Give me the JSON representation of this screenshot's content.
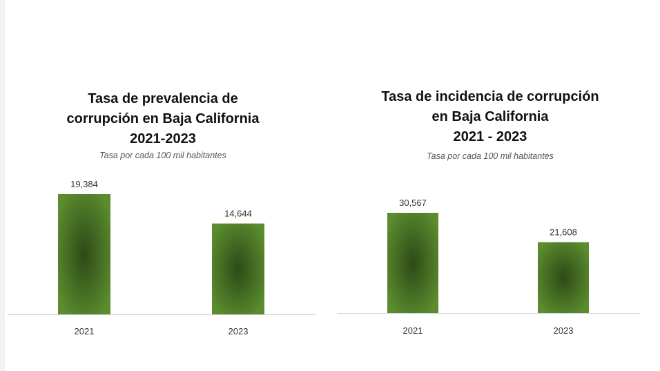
{
  "colors": {
    "bar_center": "#2c4a17",
    "bar_edge": "#5b8c2e",
    "axis": "#cfcfcf"
  },
  "chart_data": [
    {
      "type": "bar",
      "title": "Tasa de prevalencia de\ncorrupción en Baja California\n2021-2023",
      "subtitle": "Tasa por cada 100 mil habitantes",
      "categories": [
        "2021",
        "2023"
      ],
      "values": [
        19384,
        14644
      ],
      "value_labels": [
        "19,384",
        "14,644"
      ],
      "ylim": [
        0,
        19384
      ],
      "grid": false,
      "legend": "none"
    },
    {
      "type": "bar",
      "title": "Tasa de incidencia de corrupción\nen Baja California\n2021 - 2023",
      "subtitle": "Tasa por cada 100 mil habitantes",
      "categories": [
        "2021",
        "2023"
      ],
      "values": [
        30567,
        21608
      ],
      "value_labels": [
        "30,567",
        "21,608"
      ],
      "ylim": [
        0,
        30567
      ],
      "grid": false,
      "legend": "none"
    }
  ]
}
